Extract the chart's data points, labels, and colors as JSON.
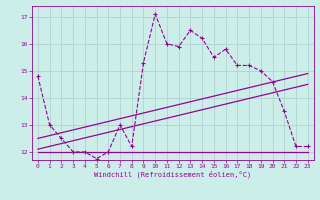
{
  "xlabel": "Windchill (Refroidissement éolien,°C)",
  "xlim": [
    -0.5,
    23.5
  ],
  "ylim": [
    11.7,
    17.4
  ],
  "yticks": [
    12,
    13,
    14,
    15,
    16,
    17
  ],
  "xticks": [
    0,
    1,
    2,
    3,
    4,
    5,
    6,
    7,
    8,
    9,
    10,
    11,
    12,
    13,
    14,
    15,
    16,
    17,
    18,
    19,
    20,
    21,
    22,
    23
  ],
  "bg_color": "#cceee8",
  "grid_color": "#aacccc",
  "line_color": "#990099",
  "line1_x": [
    0,
    1,
    2,
    3,
    4,
    5,
    6,
    7,
    8,
    9,
    10,
    11,
    12,
    13,
    14,
    15,
    16,
    17,
    18,
    19,
    20,
    21,
    22,
    23
  ],
  "line1_y": [
    14.8,
    13.0,
    12.5,
    12.0,
    12.0,
    11.75,
    12.0,
    13.0,
    12.2,
    15.3,
    17.1,
    16.0,
    15.9,
    16.5,
    16.2,
    15.5,
    15.8,
    15.2,
    15.2,
    15.0,
    14.6,
    13.5,
    12.2,
    12.2
  ],
  "line2_x": [
    0,
    9,
    10,
    20,
    23
  ],
  "line2_y": [
    12.0,
    12.0,
    12.0,
    12.0,
    12.0
  ],
  "line3_x": [
    0,
    23
  ],
  "line3_y": [
    12.5,
    14.9
  ],
  "line4_x": [
    0,
    23
  ],
  "line4_y": [
    12.1,
    14.5
  ]
}
